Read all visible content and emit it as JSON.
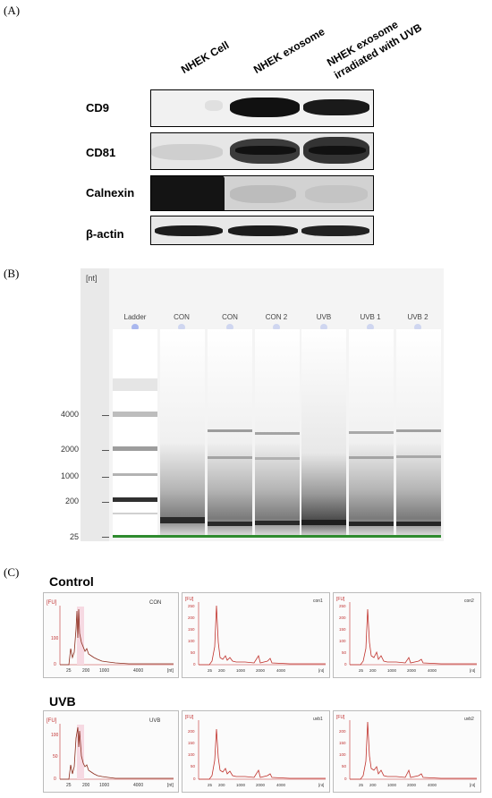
{
  "panel_a": {
    "letter": "(A)",
    "columns": [
      "NHEK  Cell",
      "NHEK exosome",
      "NHEK exosome",
      "irradiated with UVB"
    ],
    "rows": [
      "CD9",
      "CD81",
      "Calnexin",
      "β-actin"
    ]
  },
  "panel_b": {
    "letter": "(B)",
    "unit": "[nt]",
    "lanes": [
      "Ladder",
      "CON",
      "CON",
      "CON 2",
      "UVB",
      "UVB 1",
      "UVB 2"
    ],
    "ticks": [
      "4000",
      "2000",
      "1000",
      "200",
      "25"
    ]
  },
  "panel_c": {
    "letter": "(C)",
    "control_title": "Control",
    "uvb_title": "UVB",
    "control_traces": [
      "CON",
      "con1",
      "con2"
    ],
    "uvb_traces": [
      "UVB",
      "uvb1",
      "uvb2"
    ],
    "y_unit": "[FU]",
    "x_unit": "[nt]",
    "wide_x_ticks": [
      "25",
      "200",
      "1000",
      "4000"
    ],
    "wide_y_ticks": [
      "0",
      "100"
    ],
    "small_x_ticks": [
      "25",
      "200",
      "1000",
      "2000",
      "4000"
    ],
    "small_y_ticks": [
      "0",
      "50",
      "100",
      "150",
      "200",
      "250"
    ],
    "uvb_wide_y_ticks": [
      "0",
      "50",
      "100"
    ]
  }
}
